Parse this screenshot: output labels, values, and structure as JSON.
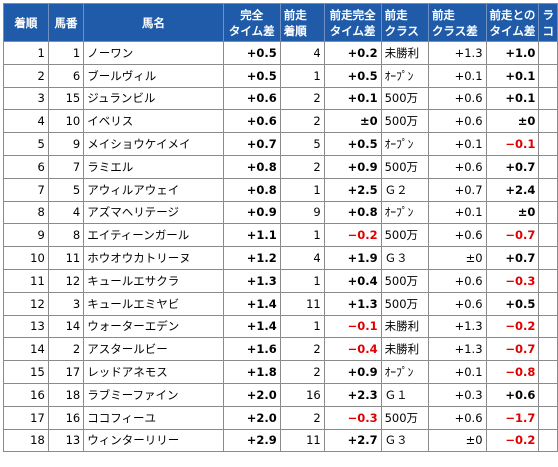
{
  "headers": {
    "rank": "着順",
    "horse_no": "馬番",
    "horse_name": "馬名",
    "time_diff": [
      "完全",
      "タイム差"
    ],
    "prev_rank": [
      "前走",
      "着順"
    ],
    "prev_time_diff": [
      "前走完全",
      "タイム差"
    ],
    "prev_class": [
      "前走",
      "クラス"
    ],
    "class_diff": [
      "前走",
      "クラス差"
    ],
    "vs_prev": [
      "前走との",
      "タイム差"
    ],
    "extra": [
      "ラ",
      "コ"
    ]
  },
  "rows": [
    {
      "rank": "1",
      "no": "1",
      "name": "ノーワン",
      "time": "+0.5",
      "prev_rank": "4",
      "prev_time": "+0.2",
      "prev_class": "未勝利",
      "class_diff": "+1.3",
      "vs_prev": "+1.0",
      "vs_neg": false
    },
    {
      "rank": "2",
      "no": "6",
      "name": "ブールヴィル",
      "time": "+0.5",
      "prev_rank": "1",
      "prev_time": "+0.5",
      "prev_class": "ｵｰﾌﾟﾝ",
      "class_diff": "+0.1",
      "vs_prev": "+0.1",
      "vs_neg": false
    },
    {
      "rank": "3",
      "no": "15",
      "name": "ジュランビル",
      "time": "+0.6",
      "prev_rank": "2",
      "prev_time": "+0.1",
      "prev_class": "500万",
      "class_diff": "+0.6",
      "vs_prev": "+0.1",
      "vs_neg": false
    },
    {
      "rank": "4",
      "no": "10",
      "name": "イベリス",
      "time": "+0.6",
      "prev_rank": "2",
      "prev_time": "±0",
      "prev_class": "500万",
      "class_diff": "+0.6",
      "vs_prev": "±0",
      "vs_neg": false
    },
    {
      "rank": "5",
      "no": "9",
      "name": "メイショウケイメイ",
      "time": "+0.7",
      "prev_rank": "5",
      "prev_time": "+0.5",
      "prev_class": "ｵｰﾌﾟﾝ",
      "class_diff": "+0.1",
      "vs_prev": "−0.1",
      "vs_neg": true
    },
    {
      "rank": "6",
      "no": "7",
      "name": "ラミエル",
      "time": "+0.8",
      "prev_rank": "2",
      "prev_time": "+0.9",
      "prev_class": "500万",
      "class_diff": "+0.6",
      "vs_prev": "+0.7",
      "vs_neg": false
    },
    {
      "rank": "7",
      "no": "5",
      "name": "アウィルアウェイ",
      "time": "+0.8",
      "prev_rank": "1",
      "prev_time": "+2.5",
      "prev_class": "Ｇ２",
      "class_diff": "+0.7",
      "vs_prev": "+2.4",
      "vs_neg": false
    },
    {
      "rank": "8",
      "no": "4",
      "name": "アズマヘリテージ",
      "time": "+0.9",
      "prev_rank": "9",
      "prev_time": "+0.8",
      "prev_class": "ｵｰﾌﾟﾝ",
      "class_diff": "+0.1",
      "vs_prev": "±0",
      "vs_neg": false
    },
    {
      "rank": "9",
      "no": "8",
      "name": "エイティーンガール",
      "time": "+1.1",
      "prev_rank": "1",
      "prev_time": "−0.2",
      "prev_neg": true,
      "prev_class": "500万",
      "class_diff": "+0.6",
      "vs_prev": "−0.7",
      "vs_neg": true
    },
    {
      "rank": "10",
      "no": "11",
      "name": "ホウオウカトリーヌ",
      "time": "+1.2",
      "prev_rank": "4",
      "prev_time": "+1.9",
      "prev_class": "Ｇ３",
      "class_diff": "±0",
      "vs_prev": "+0.7",
      "vs_neg": false
    },
    {
      "rank": "11",
      "no": "12",
      "name": "キュールエサクラ",
      "time": "+1.3",
      "prev_rank": "1",
      "prev_time": "+0.4",
      "prev_class": "500万",
      "class_diff": "+0.6",
      "vs_prev": "−0.3",
      "vs_neg": true
    },
    {
      "rank": "12",
      "no": "3",
      "name": "キュールエミヤビ",
      "time": "+1.4",
      "prev_rank": "11",
      "prev_time": "+1.3",
      "prev_class": "500万",
      "class_diff": "+0.6",
      "vs_prev": "+0.5",
      "vs_neg": false
    },
    {
      "rank": "13",
      "no": "14",
      "name": "ウォーターエデン",
      "time": "+1.4",
      "prev_rank": "1",
      "prev_time": "−0.1",
      "prev_neg": true,
      "prev_class": "未勝利",
      "class_diff": "+1.3",
      "vs_prev": "−0.2",
      "vs_neg": true
    },
    {
      "rank": "14",
      "no": "2",
      "name": "アスタールビー",
      "time": "+1.6",
      "prev_rank": "2",
      "prev_time": "−0.4",
      "prev_neg": true,
      "prev_class": "未勝利",
      "class_diff": "+1.3",
      "vs_prev": "−0.7",
      "vs_neg": true
    },
    {
      "rank": "15",
      "no": "17",
      "name": "レッドアネモス",
      "time": "+1.8",
      "prev_rank": "2",
      "prev_time": "+0.9",
      "prev_class": "ｵｰﾌﾟﾝ",
      "class_diff": "+0.1",
      "vs_prev": "−0.8",
      "vs_neg": true
    },
    {
      "rank": "16",
      "no": "18",
      "name": "ラブミーファイン",
      "time": "+2.0",
      "prev_rank": "16",
      "prev_time": "+2.3",
      "prev_class": "Ｇ１",
      "class_diff": "+0.3",
      "vs_prev": "+0.6",
      "vs_neg": false
    },
    {
      "rank": "17",
      "no": "16",
      "name": "ココフィーユ",
      "time": "+2.0",
      "prev_rank": "2",
      "prev_time": "−0.3",
      "prev_neg": true,
      "prev_class": "500万",
      "class_diff": "+0.6",
      "vs_prev": "−1.7",
      "vs_neg": true
    },
    {
      "rank": "18",
      "no": "13",
      "name": "ウィンターリリー",
      "time": "+2.9",
      "prev_rank": "11",
      "prev_time": "+2.7",
      "prev_class": "Ｇ３",
      "class_diff": "±0",
      "vs_prev": "−0.2",
      "vs_neg": true
    }
  ]
}
